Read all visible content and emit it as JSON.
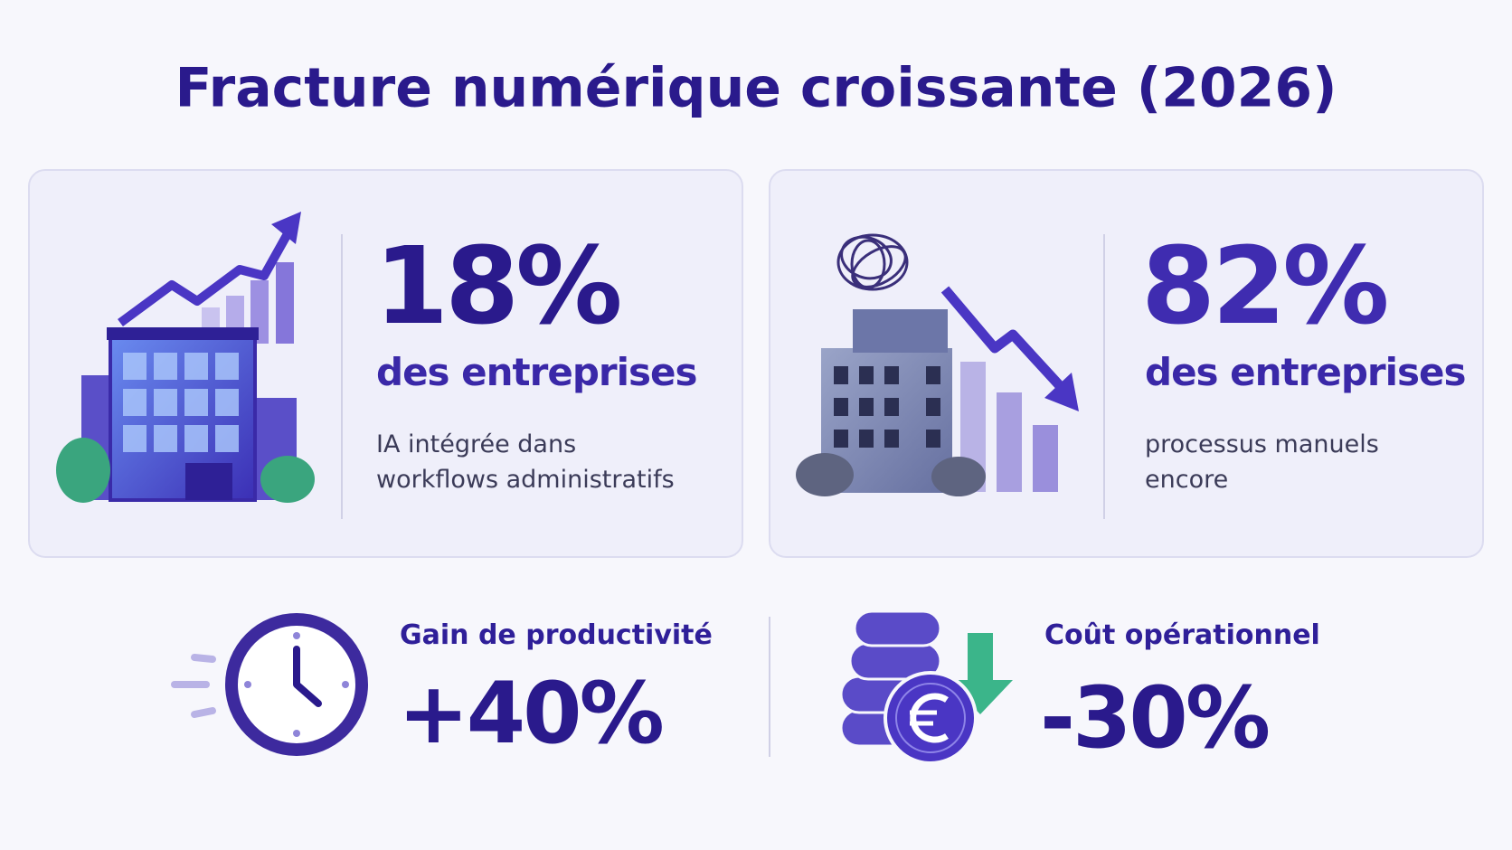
{
  "header": {
    "title": "Fracture numérique croissante (2026)"
  },
  "cards": [
    {
      "stat": "18%",
      "label": "des entreprises",
      "description": [
        "IA intégrée dans",
        "workflows administratifs"
      ]
    },
    {
      "stat": "82%",
      "label": "des entreprises",
      "description": [
        "processus manuels",
        "encore"
      ]
    }
  ],
  "metrics": [
    {
      "label": "Gain de productivité",
      "value": "+40%"
    },
    {
      "label": "Coût opérationnel",
      "value": "-30%"
    }
  ]
}
